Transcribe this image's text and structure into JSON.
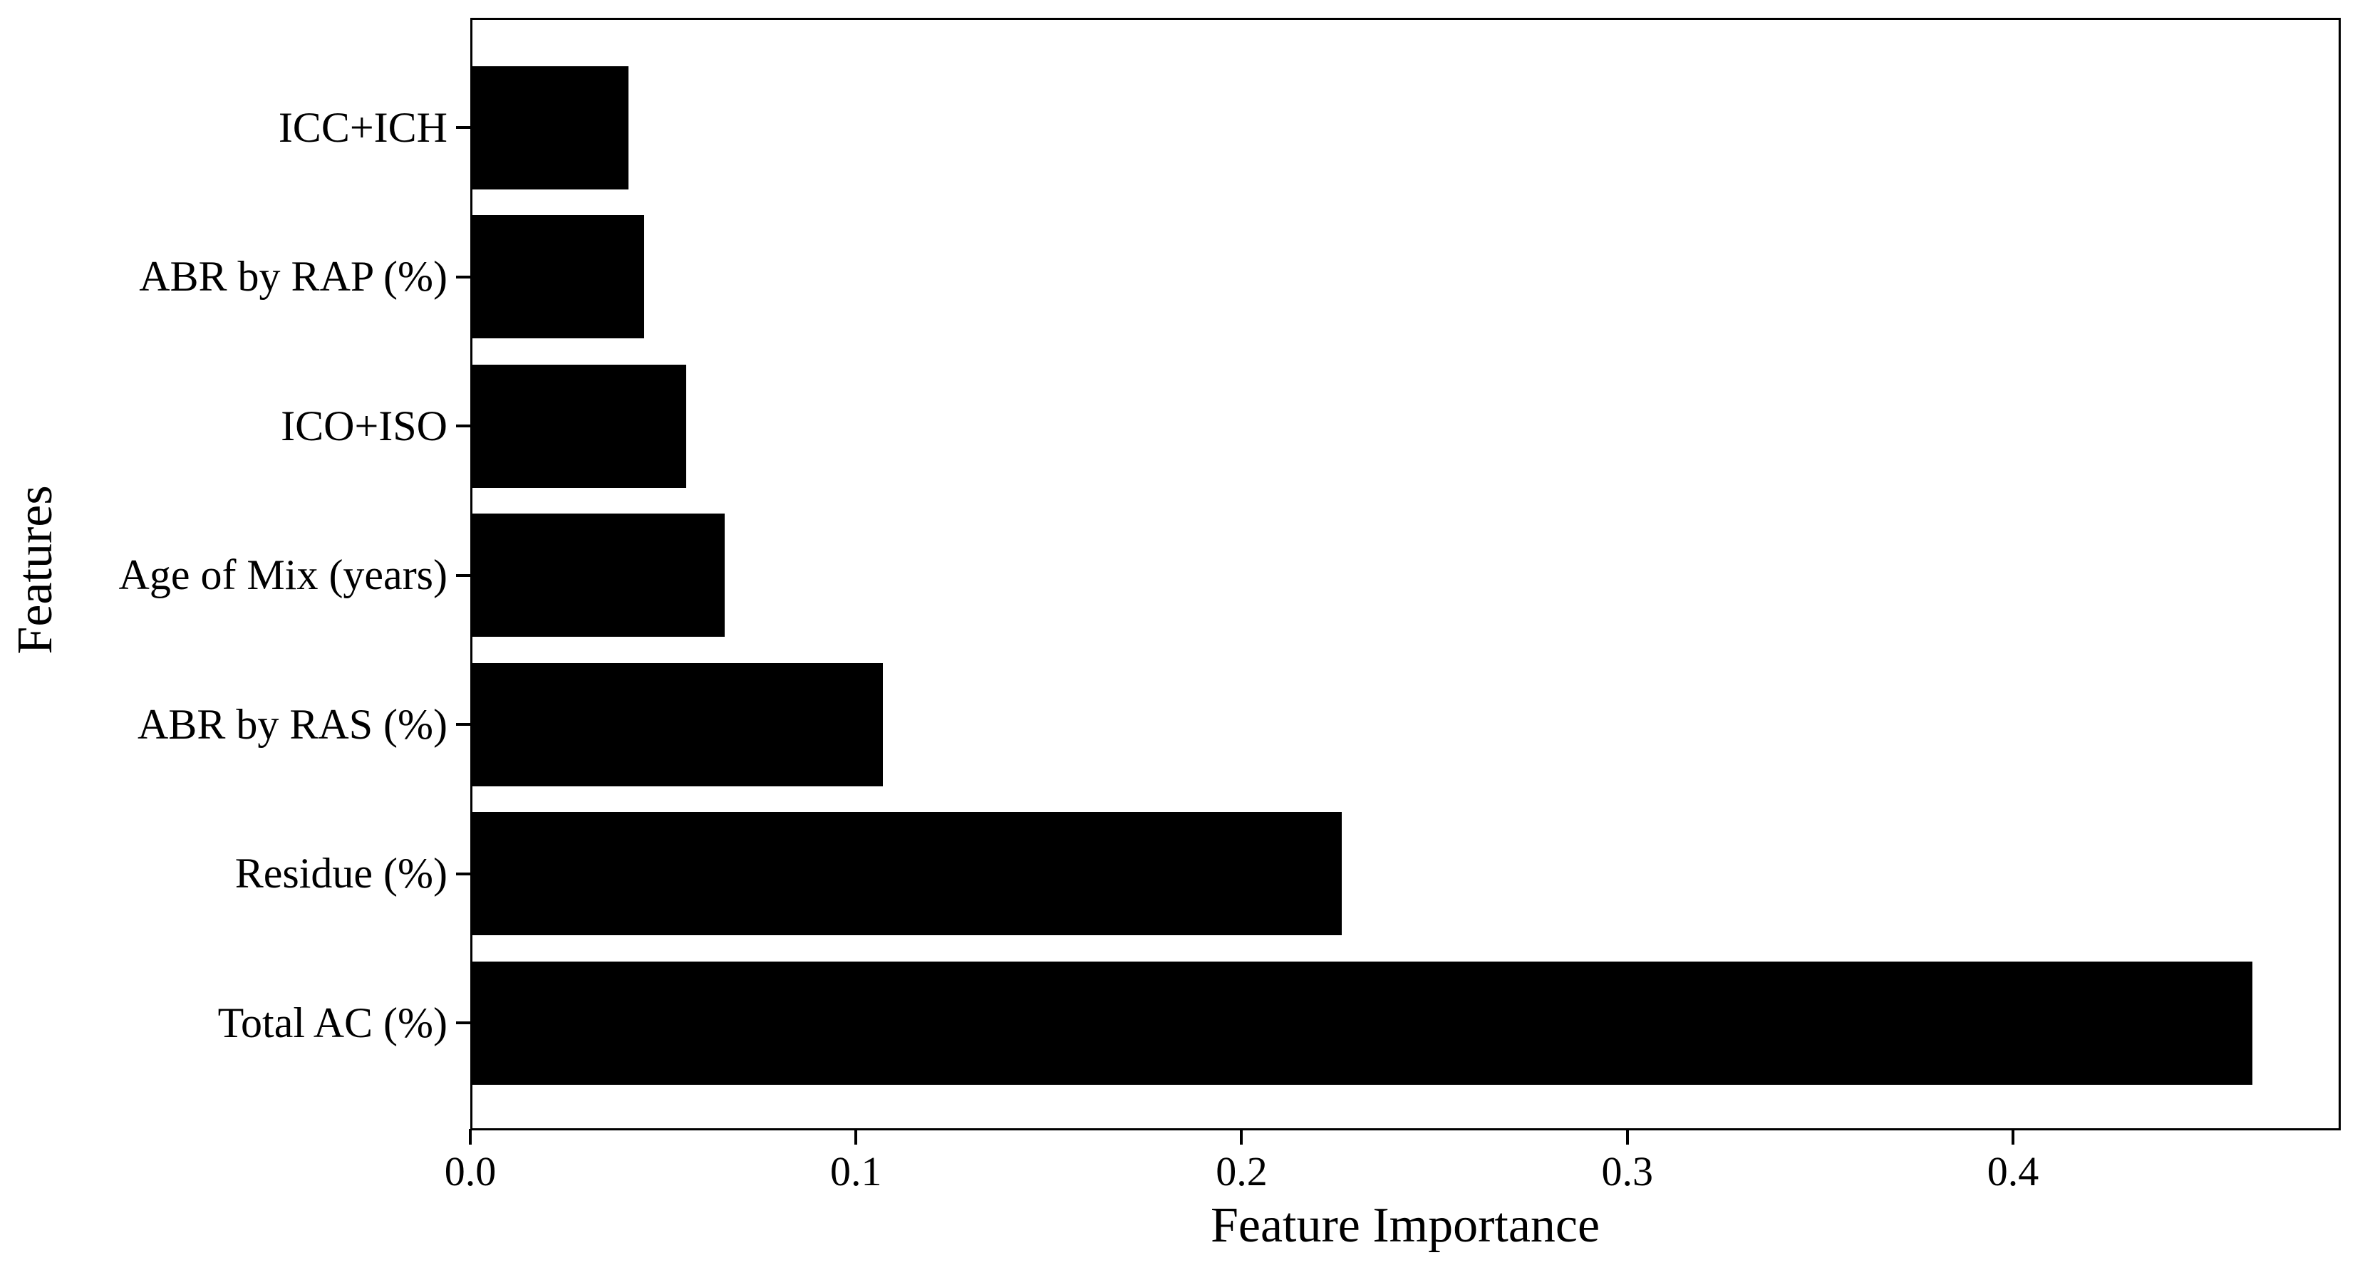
{
  "figure": {
    "background_color": "#ffffff",
    "bar_color": "#000000",
    "axis_color": "#000000"
  },
  "chart_data": {
    "type": "bar",
    "orientation": "horizontal",
    "title": "",
    "xlabel": "Feature Importance",
    "ylabel": "Features",
    "categories": [
      "ICC+ICH",
      "ABR by RAP (%)",
      "ICO+ISO",
      "Age of Mix (years)",
      "ABR by RAS (%)",
      "Residue (%)",
      "Total AC (%)"
    ],
    "values": [
      0.041,
      0.045,
      0.056,
      0.066,
      0.107,
      0.226,
      0.462
    ],
    "x_ticks": [
      "0.0",
      "0.1",
      "0.2",
      "0.3",
      "0.4"
    ],
    "x_tick_values": [
      0.0,
      0.1,
      0.2,
      0.3,
      0.4
    ],
    "xlim": [
      0,
      0.485
    ],
    "grid": false,
    "legend": false
  }
}
